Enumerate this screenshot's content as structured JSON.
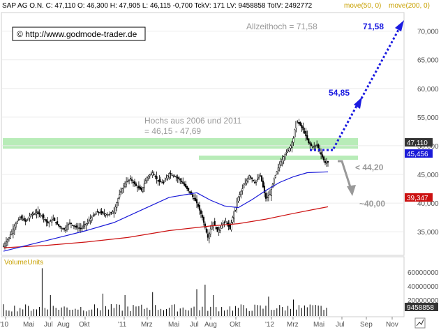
{
  "header": {
    "text": "SAP AG O.N.  C: 47,110  O: 46,300  H: 47,905  L: 46,115  -0,700  TckV: 171  LV: 9458858  TotV: 2492772",
    "ma50": "move(50, 0)",
    "ma200": "move(200, 0)"
  },
  "copyright": "© http://www.godmode-trader.de",
  "annotations": {
    "ath_label": "Allzeithoch = 71,58",
    "highs_line1": "Hochs aus 2006 und 2011",
    "highs_line2": "= 46,15 - 47,69",
    "target_71": "71,58",
    "target_54": "54,85",
    "support_44": "< 44,20",
    "support_40": "~40,00"
  },
  "price_badges": {
    "close": "47,110",
    "ma50": "45,456",
    "ma200": "39,347"
  },
  "volume": {
    "label": "VolumeUnits",
    "last": "9458858",
    "ticks": [
      "60000000",
      "40000000",
      "20000000"
    ]
  },
  "colors": {
    "ma50": "#1a1ad8",
    "ma200": "#cc1111",
    "zone": "#b8ecb8",
    "arrow_up": "#1b1be0",
    "arrow_down": "#999999",
    "header_ma": "#c8a000"
  },
  "chart_data": {
    "type": "candlestick",
    "title": "SAP AG O.N.",
    "yaxis_ticks": [
      "70,000",
      "65,000",
      "60,000",
      "55,000",
      "50,000",
      "45,000",
      "40,000",
      "35,000"
    ],
    "ylim": [
      31,
      73
    ],
    "xaxis_ticks": [
      "'10",
      "Mai",
      "Jul",
      "Aug",
      "Okt",
      "'11",
      "Mrz",
      "Mai",
      "Jul",
      "Aug",
      "Okt",
      "'12",
      "Mrz",
      "Mai",
      "Jul",
      "Sep",
      "Nov"
    ],
    "price_path": [
      [
        0,
        32.5
      ],
      [
        4,
        34.0
      ],
      [
        8,
        36.0
      ],
      [
        12,
        37.5
      ],
      [
        16,
        36.8
      ],
      [
        20,
        38.0
      ],
      [
        24,
        38.3
      ],
      [
        28,
        37.8
      ],
      [
        32,
        36.5
      ],
      [
        36,
        37.2
      ],
      [
        40,
        36.0
      ],
      [
        44,
        35.4
      ],
      [
        48,
        36.6
      ],
      [
        52,
        35.8
      ],
      [
        56,
        35.6
      ],
      [
        60,
        36.4
      ],
      [
        64,
        37.5
      ],
      [
        68,
        38.5
      ],
      [
        72,
        38.2
      ],
      [
        76,
        38.0
      ],
      [
        80,
        38.6
      ],
      [
        84,
        41.5
      ],
      [
        88,
        43.5
      ],
      [
        92,
        44.2
      ],
      [
        96,
        43.0
      ],
      [
        100,
        42.2
      ],
      [
        104,
        44.5
      ],
      [
        108,
        45.3
      ],
      [
        112,
        43.8
      ],
      [
        116,
        43.5
      ],
      [
        120,
        45.2
      ],
      [
        124,
        44.7
      ],
      [
        128,
        44.0
      ],
      [
        132,
        42.8
      ],
      [
        136,
        41.5
      ],
      [
        140,
        40.0
      ],
      [
        144,
        37.5
      ],
      [
        148,
        34.0
      ],
      [
        150,
        35.5
      ],
      [
        152,
        36.6
      ],
      [
        155,
        35.0
      ],
      [
        158,
        36.2
      ],
      [
        161,
        36.8
      ],
      [
        164,
        35.5
      ],
      [
        167,
        38.5
      ],
      [
        170,
        41.0
      ],
      [
        174,
        43.0
      ],
      [
        178,
        44.8
      ],
      [
        182,
        43.6
      ],
      [
        186,
        44.8
      ],
      [
        190,
        40.8
      ],
      [
        193,
        41.5
      ],
      [
        196,
        44.2
      ],
      [
        200,
        46.8
      ],
      [
        204,
        48.5
      ],
      [
        208,
        50.0
      ],
      [
        210,
        51.3
      ],
      [
        212,
        54.3
      ],
      [
        215,
        53.6
      ],
      [
        218,
        52.3
      ],
      [
        221,
        50.5
      ],
      [
        224,
        49.8
      ],
      [
        227,
        50.2
      ],
      [
        230,
        48.5
      ],
      [
        233,
        47.0
      ],
      [
        235,
        47.1
      ]
    ],
    "ma50": [
      [
        0,
        31.6
      ],
      [
        20,
        32.8
      ],
      [
        40,
        34.0
      ],
      [
        60,
        35.2
      ],
      [
        80,
        36.6
      ],
      [
        100,
        38.8
      ],
      [
        120,
        41.0
      ],
      [
        140,
        41.8
      ],
      [
        150,
        40.5
      ],
      [
        160,
        39.5
      ],
      [
        170,
        39.2
      ],
      [
        180,
        40.6
      ],
      [
        190,
        42.2
      ],
      [
        200,
        43.6
      ],
      [
        210,
        44.6
      ],
      [
        220,
        45.3
      ],
      [
        235,
        45.456
      ]
    ],
    "ma200": [
      [
        0,
        32.2
      ],
      [
        30,
        32.6
      ],
      [
        60,
        33.2
      ],
      [
        90,
        34.0
      ],
      [
        120,
        35.2
      ],
      [
        150,
        36.0
      ],
      [
        170,
        36.4
      ],
      [
        190,
        37.2
      ],
      [
        210,
        38.2
      ],
      [
        225,
        38.9
      ],
      [
        235,
        39.347
      ]
    ],
    "volume_peaks": [
      [
        29,
        64
      ],
      [
        35,
        28
      ],
      [
        72,
        30
      ],
      [
        88,
        28
      ],
      [
        108,
        32
      ],
      [
        140,
        36
      ],
      [
        147,
        42
      ],
      [
        152,
        28
      ],
      [
        192,
        26
      ],
      [
        210,
        22
      ]
    ]
  }
}
